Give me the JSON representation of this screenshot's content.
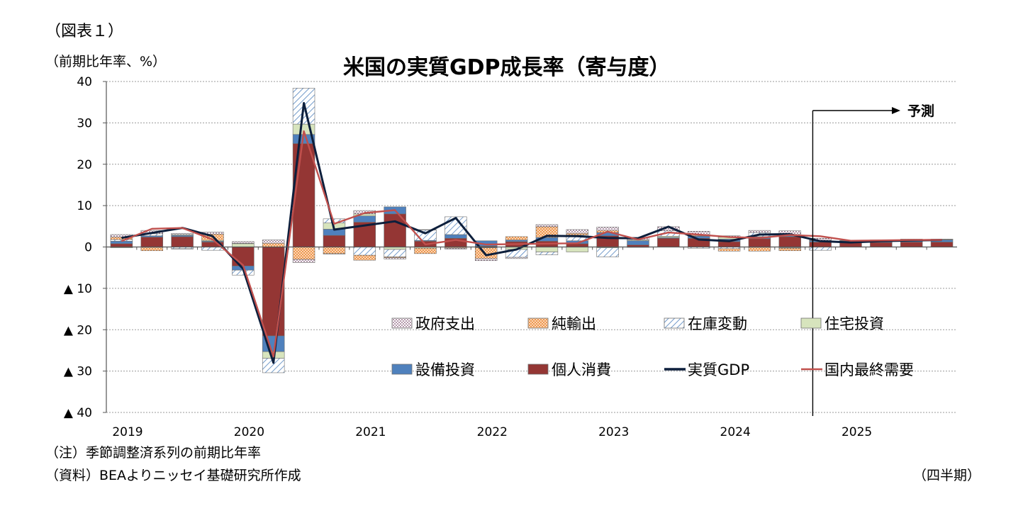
{
  "header": {
    "figure_label": "（図表１）",
    "unit_label": "（前期比年率、%）",
    "title": "米国の実質GDP成長率（寄与度）"
  },
  "footer": {
    "note": "（注）季節調整済系列の前期比年率",
    "source": "（資料）BEAよりニッセイ基礎研究所作成",
    "x_unit": "（四半期）"
  },
  "forecast_label": "予測",
  "chart_data": {
    "type": "bar",
    "stacked": true,
    "title": "米国の実質GDP成長率（寄与度）",
    "ylabel": "（前期比年率、%）",
    "xlabel": "（四半期）",
    "ylim": [
      -40,
      40
    ],
    "yticks": [
      40,
      30,
      20,
      10,
      0,
      -10,
      -20,
      -30,
      -40
    ],
    "ytick_labels": [
      "40",
      "30",
      "20",
      "10",
      "0",
      "▲ 10",
      "▲ 20",
      "▲ 30",
      "▲ 40"
    ],
    "grid": true,
    "legend_position": "lower-right-inside",
    "year_labels": [
      "2019",
      "2020",
      "2021",
      "2022",
      "2023",
      "2024",
      "2025"
    ],
    "quarters": [
      "2019Q1",
      "2019Q2",
      "2019Q3",
      "2019Q4",
      "2020Q1",
      "2020Q2",
      "2020Q3",
      "2020Q4",
      "2021Q1",
      "2021Q2",
      "2021Q3",
      "2021Q4",
      "2022Q1",
      "2022Q2",
      "2022Q3",
      "2022Q4",
      "2023Q1",
      "2023Q2",
      "2023Q3",
      "2023Q4",
      "2024Q1",
      "2024Q2",
      "2024Q3",
      "2024Q4",
      "2025Q1",
      "2025Q2",
      "2025Q3",
      "2025Q4"
    ],
    "forecast_start_index": 23,
    "series": [
      {
        "name": "個人消費",
        "kind": "bar",
        "color": "#943634",
        "pattern": "solid",
        "values": [
          0.8,
          2.4,
          2.5,
          1.2,
          -4.6,
          -21.5,
          25.0,
          2.8,
          6.0,
          8.0,
          1.4,
          2.1,
          0.2,
          1.3,
          1.4,
          0.8,
          2.7,
          0.5,
          2.1,
          2.1,
          1.3,
          2.0,
          2.5,
          1.2,
          1.0,
          1.1,
          1.2,
          1.2
        ]
      },
      {
        "name": "設備投資",
        "kind": "bar",
        "color": "#4f81bd",
        "pattern": "solid",
        "values": [
          0.6,
          0.3,
          0.3,
          0.2,
          -1.0,
          -3.8,
          2.2,
          1.5,
          1.5,
          1.7,
          0.2,
          0.9,
          1.3,
          0.4,
          0.9,
          0.7,
          0.8,
          1.0,
          0.2,
          0.5,
          0.6,
          0.5,
          0.5,
          0.3,
          0.4,
          0.4,
          0.5,
          0.5
        ]
      },
      {
        "name": "住宅投資",
        "kind": "bar",
        "color": "#d7e4bd",
        "pattern": "solid",
        "values": [
          -0.2,
          -0.1,
          0.2,
          0.2,
          0.8,
          -1.6,
          2.5,
          1.5,
          0.5,
          -0.6,
          -0.3,
          -0.1,
          -0.1,
          -0.6,
          -1.2,
          -1.2,
          -0.2,
          0.2,
          0.3,
          0.1,
          0.5,
          -0.1,
          -0.2,
          0.1,
          0.1,
          0.1,
          0.1,
          0.1
        ]
      },
      {
        "name": "在庫変動",
        "kind": "bar",
        "color": "#8db4e2",
        "pattern": "hatch",
        "values": [
          0.4,
          0.5,
          -0.4,
          -0.8,
          -1.2,
          -3.5,
          8.7,
          1.0,
          -2.0,
          -1.8,
          2.5,
          4.3,
          -0.1,
          -1.9,
          -0.7,
          1.4,
          -2.2,
          -0.1,
          1.3,
          -0.3,
          -0.4,
          1.0,
          -0.1,
          -0.8,
          0.0,
          0.0,
          0.0,
          0.0
        ]
      },
      {
        "name": "純輸出",
        "kind": "bar",
        "color": "#f79646",
        "pattern": "dots",
        "values": [
          0.6,
          -0.8,
          -0.1,
          1.5,
          0.1,
          0.9,
          -3.0,
          -1.6,
          -1.2,
          -0.2,
          -1.3,
          -0.2,
          -2.6,
          0.8,
          2.6,
          0.4,
          0.5,
          0.0,
          0.0,
          0.3,
          -0.6,
          -0.9,
          -0.6,
          0.0,
          0.0,
          0.0,
          0.0,
          0.0
        ]
      },
      {
        "name": "政府支出",
        "kind": "bar",
        "color": "#e6b9b8",
        "pattern": "dots",
        "values": [
          0.6,
          0.8,
          0.3,
          0.5,
          0.4,
          0.8,
          -0.8,
          -0.1,
          0.8,
          -0.3,
          0.1,
          -0.2,
          -0.5,
          -0.3,
          0.5,
          0.9,
          0.8,
          0.6,
          1.0,
          0.8,
          0.3,
          0.5,
          0.9,
          0.5,
          0.1,
          0.1,
          0.1,
          0.1
        ]
      },
      {
        "name": "実質GDP",
        "kind": "line",
        "color": "#0d1f3c",
        "values": [
          2.2,
          3.4,
          4.6,
          2.6,
          -5.3,
          -28.0,
          34.8,
          4.2,
          5.2,
          6.2,
          3.3,
          7.0,
          -2.0,
          -0.6,
          2.7,
          2.6,
          2.2,
          2.1,
          4.9,
          1.8,
          1.4,
          3.0,
          3.1,
          1.4,
          1.1,
          1.4,
          1.6,
          1.7
        ]
      },
      {
        "name": "国内最終需要",
        "kind": "line",
        "color": "#c0504d",
        "values": [
          1.4,
          4.4,
          4.6,
          1.8,
          -4.4,
          -26.5,
          28.0,
          5.6,
          8.2,
          8.9,
          0.6,
          1.7,
          0.6,
          0.7,
          0.8,
          0.9,
          3.7,
          1.8,
          3.5,
          3.0,
          2.4,
          2.2,
          2.9,
          2.6,
          1.5,
          1.6,
          1.7,
          1.7
        ]
      }
    ]
  }
}
